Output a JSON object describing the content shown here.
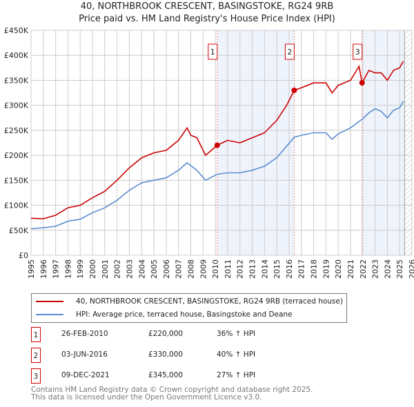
{
  "chart_data": {
    "type": "line",
    "title": "40, NORTHBROOK CRESCENT, BASINGSTOKE, RG24 9RB",
    "subtitle": "Price paid vs. HM Land Registry's House Price Index (HPI)",
    "xlim": [
      1995,
      2026
    ],
    "ylim": [
      0,
      450000
    ],
    "x_ticks": [
      "1995",
      "1996",
      "1997",
      "1998",
      "1999",
      "2000",
      "2001",
      "2002",
      "2003",
      "2004",
      "2005",
      "2006",
      "2007",
      "2008",
      "2009",
      "2010",
      "2011",
      "2012",
      "2013",
      "2014",
      "2015",
      "2016",
      "2017",
      "2018",
      "2019",
      "2020",
      "2021",
      "2022",
      "2023",
      "2024",
      "2025",
      "2026"
    ],
    "y_ticks": [
      {
        "v": 0,
        "label": "£0"
      },
      {
        "v": 50000,
        "label": "£50K"
      },
      {
        "v": 100000,
        "label": "£100K"
      },
      {
        "v": 150000,
        "label": "£150K"
      },
      {
        "v": 200000,
        "label": "£200K"
      },
      {
        "v": 250000,
        "label": "£250K"
      },
      {
        "v": 300000,
        "label": "£300K"
      },
      {
        "v": 350000,
        "label": "£350K"
      },
      {
        "v": 400000,
        "label": "£400K"
      },
      {
        "v": 450000,
        "label": "£450K"
      }
    ],
    "grid": true,
    "series": [
      {
        "name": "40, NORTHBROOK CRESCENT, BASINGSTOKE, RG24 9RB (terraced house)",
        "color": "#cc0000",
        "x": [
          1995,
          1996,
          1997,
          1998,
          1999,
          2000,
          2001,
          2002,
          2003,
          2004,
          2005,
          2006,
          2007,
          2007.7,
          2008,
          2008.5,
          2009.2,
          2010.15,
          2011,
          2012,
          2013,
          2014,
          2015,
          2015.8,
          2016.42,
          2017,
          2018,
          2019,
          2019.5,
          2020,
          2021,
          2021.7,
          2021.94,
          2022.5,
          2023,
          2023.5,
          2024,
          2024.5,
          2025,
          2025.3
        ],
        "y": [
          74000,
          73000,
          80000,
          95000,
          100000,
          115000,
          128000,
          150000,
          175000,
          195000,
          205000,
          210000,
          230000,
          255000,
          240000,
          235000,
          200000,
          220000,
          230000,
          225000,
          235000,
          245000,
          270000,
          300000,
          330000,
          335000,
          345000,
          345000,
          325000,
          340000,
          350000,
          378000,
          345000,
          370000,
          365000,
          365000,
          350000,
          370000,
          375000,
          388000
        ]
      },
      {
        "name": "HPI: Average price, terraced house, Basingstoke and Deane",
        "color": "#5b8bd0",
        "x": [
          1995,
          1996,
          1997,
          1998,
          1999,
          2000,
          2001,
          2002,
          2003,
          2004,
          2005,
          2006,
          2007,
          2007.7,
          2008.5,
          2009.2,
          2010.15,
          2011,
          2012,
          2013,
          2014,
          2015,
          2016.42,
          2017,
          2018,
          2019,
          2019.5,
          2020,
          2021,
          2021.94,
          2022.5,
          2023,
          2023.5,
          2024,
          2024.5,
          2025,
          2025.3
        ],
        "y": [
          53000,
          55000,
          58000,
          68000,
          72000,
          85000,
          95000,
          110000,
          130000,
          145000,
          150000,
          155000,
          170000,
          185000,
          170000,
          150000,
          162000,
          165000,
          165000,
          170000,
          178000,
          195000,
          236000,
          240000,
          245000,
          245000,
          232000,
          243000,
          255000,
          272000,
          285000,
          293000,
          288000,
          275000,
          290000,
          295000,
          308000
        ]
      }
    ],
    "sales": [
      {
        "n": "1",
        "date": "26-FEB-2010",
        "x": 2010.15,
        "price": "£220,000",
        "value": 220000,
        "hpi": "36% ↑ HPI"
      },
      {
        "n": "2",
        "date": "03-JUN-2016",
        "x": 2016.42,
        "price": "£330,000",
        "value": 330000,
        "hpi": "40% ↑ HPI"
      },
      {
        "n": "3",
        "date": "09-DEC-2021",
        "x": 2021.94,
        "price": "£345,000",
        "value": 345000,
        "hpi": "27% ↑ HPI"
      }
    ],
    "footer": [
      "Contains HM Land Registry data © Crown copyright and database right 2025.",
      "This data is licensed under the Open Government Licence v3.0."
    ]
  }
}
